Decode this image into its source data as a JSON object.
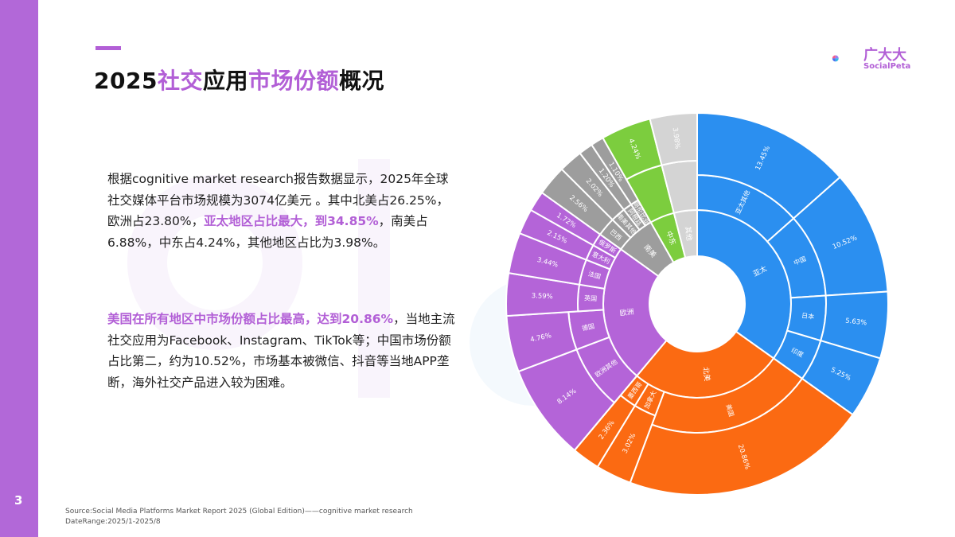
{
  "page": {
    "number": "3",
    "title_parts": [
      "2025",
      "社交",
      "应用",
      "市场份额",
      "概况"
    ]
  },
  "logo": {
    "name": "广大大",
    "sub": "SocialPeta"
  },
  "paragraph1": {
    "text1": "根据cognitive market research报告数据显示，2025年全球社交媒体平台市场规模为3074亿美元 。其中北美占26.25%，欧洲占23.80%，",
    "highlight": "亚太地区占比最大，到34.85%",
    "text2": "，南美占6.88%，中东占4.24%，其他地区占比为3.98%。"
  },
  "paragraph2": {
    "highlight": "美国在所有地区中市场份额占比最高，达到20.86%",
    "text": "，当地主流社交应用为Facebook、Instagram、TikTok等；中国市场份额占比第二，约为10.52%，市场基本被微信、抖音等当地APP垄断，海外社交产品进入较为困难。"
  },
  "source": {
    "line1": "Source:Social Media Platforms Market Report 2025 (Global Edition)——cognitive market research",
    "line2": "DateRange:2025/1-2025/8"
  },
  "colors": {
    "asia": "#2b8ff0",
    "north_america": "#fb6a12",
    "europe": "#b464d8",
    "south_america": "#9d9d9d",
    "middle_east": "#7ccd3e",
    "other": "#d4d4d4",
    "accent": "#b25fd6"
  },
  "chart_data": {
    "type": "sunburst",
    "regions": [
      {
        "name": "亚太",
        "value": 34.85,
        "color_key": "asia",
        "children": [
          {
            "name": "亚太其他",
            "value": 13.45
          },
          {
            "name": "中国",
            "value": 10.52
          },
          {
            "name": "日本",
            "value": 5.63
          },
          {
            "name": "印度",
            "value": 5.25
          }
        ]
      },
      {
        "name": "北美",
        "value": 26.25,
        "color_key": "north_america",
        "children": [
          {
            "name": "美国",
            "value": 20.86
          },
          {
            "name": "加拿大",
            "value": 3.02
          },
          {
            "name": "墨西哥",
            "value": 2.36
          }
        ]
      },
      {
        "name": "欧洲",
        "value": 23.8,
        "color_key": "europe",
        "children": [
          {
            "name": "欧洲其他",
            "value": 8.14
          },
          {
            "name": "德国",
            "value": 4.76
          },
          {
            "name": "英国",
            "value": 3.59
          },
          {
            "name": "法国",
            "value": 3.44
          },
          {
            "name": "意大利",
            "value": 2.15
          },
          {
            "name": "俄罗斯",
            "value": 1.72
          }
        ]
      },
      {
        "name": "南美",
        "value": 6.88,
        "color_key": "south_america",
        "children": [
          {
            "name": "巴西",
            "value": 2.56
          },
          {
            "name": "南美其他",
            "value": 2.02
          },
          {
            "name": "阿根廷",
            "value": 1.2
          },
          {
            "name": "哥伦比亚",
            "value": 1.1
          }
        ]
      },
      {
        "name": "中东",
        "value": 4.24,
        "color_key": "middle_east",
        "children": [
          {
            "name": "中东",
            "value": 4.24
          }
        ]
      },
      {
        "name": "其他",
        "value": 3.98,
        "color_key": "other",
        "children": [
          {
            "name": "其他",
            "value": 3.98
          }
        ]
      }
    ]
  }
}
